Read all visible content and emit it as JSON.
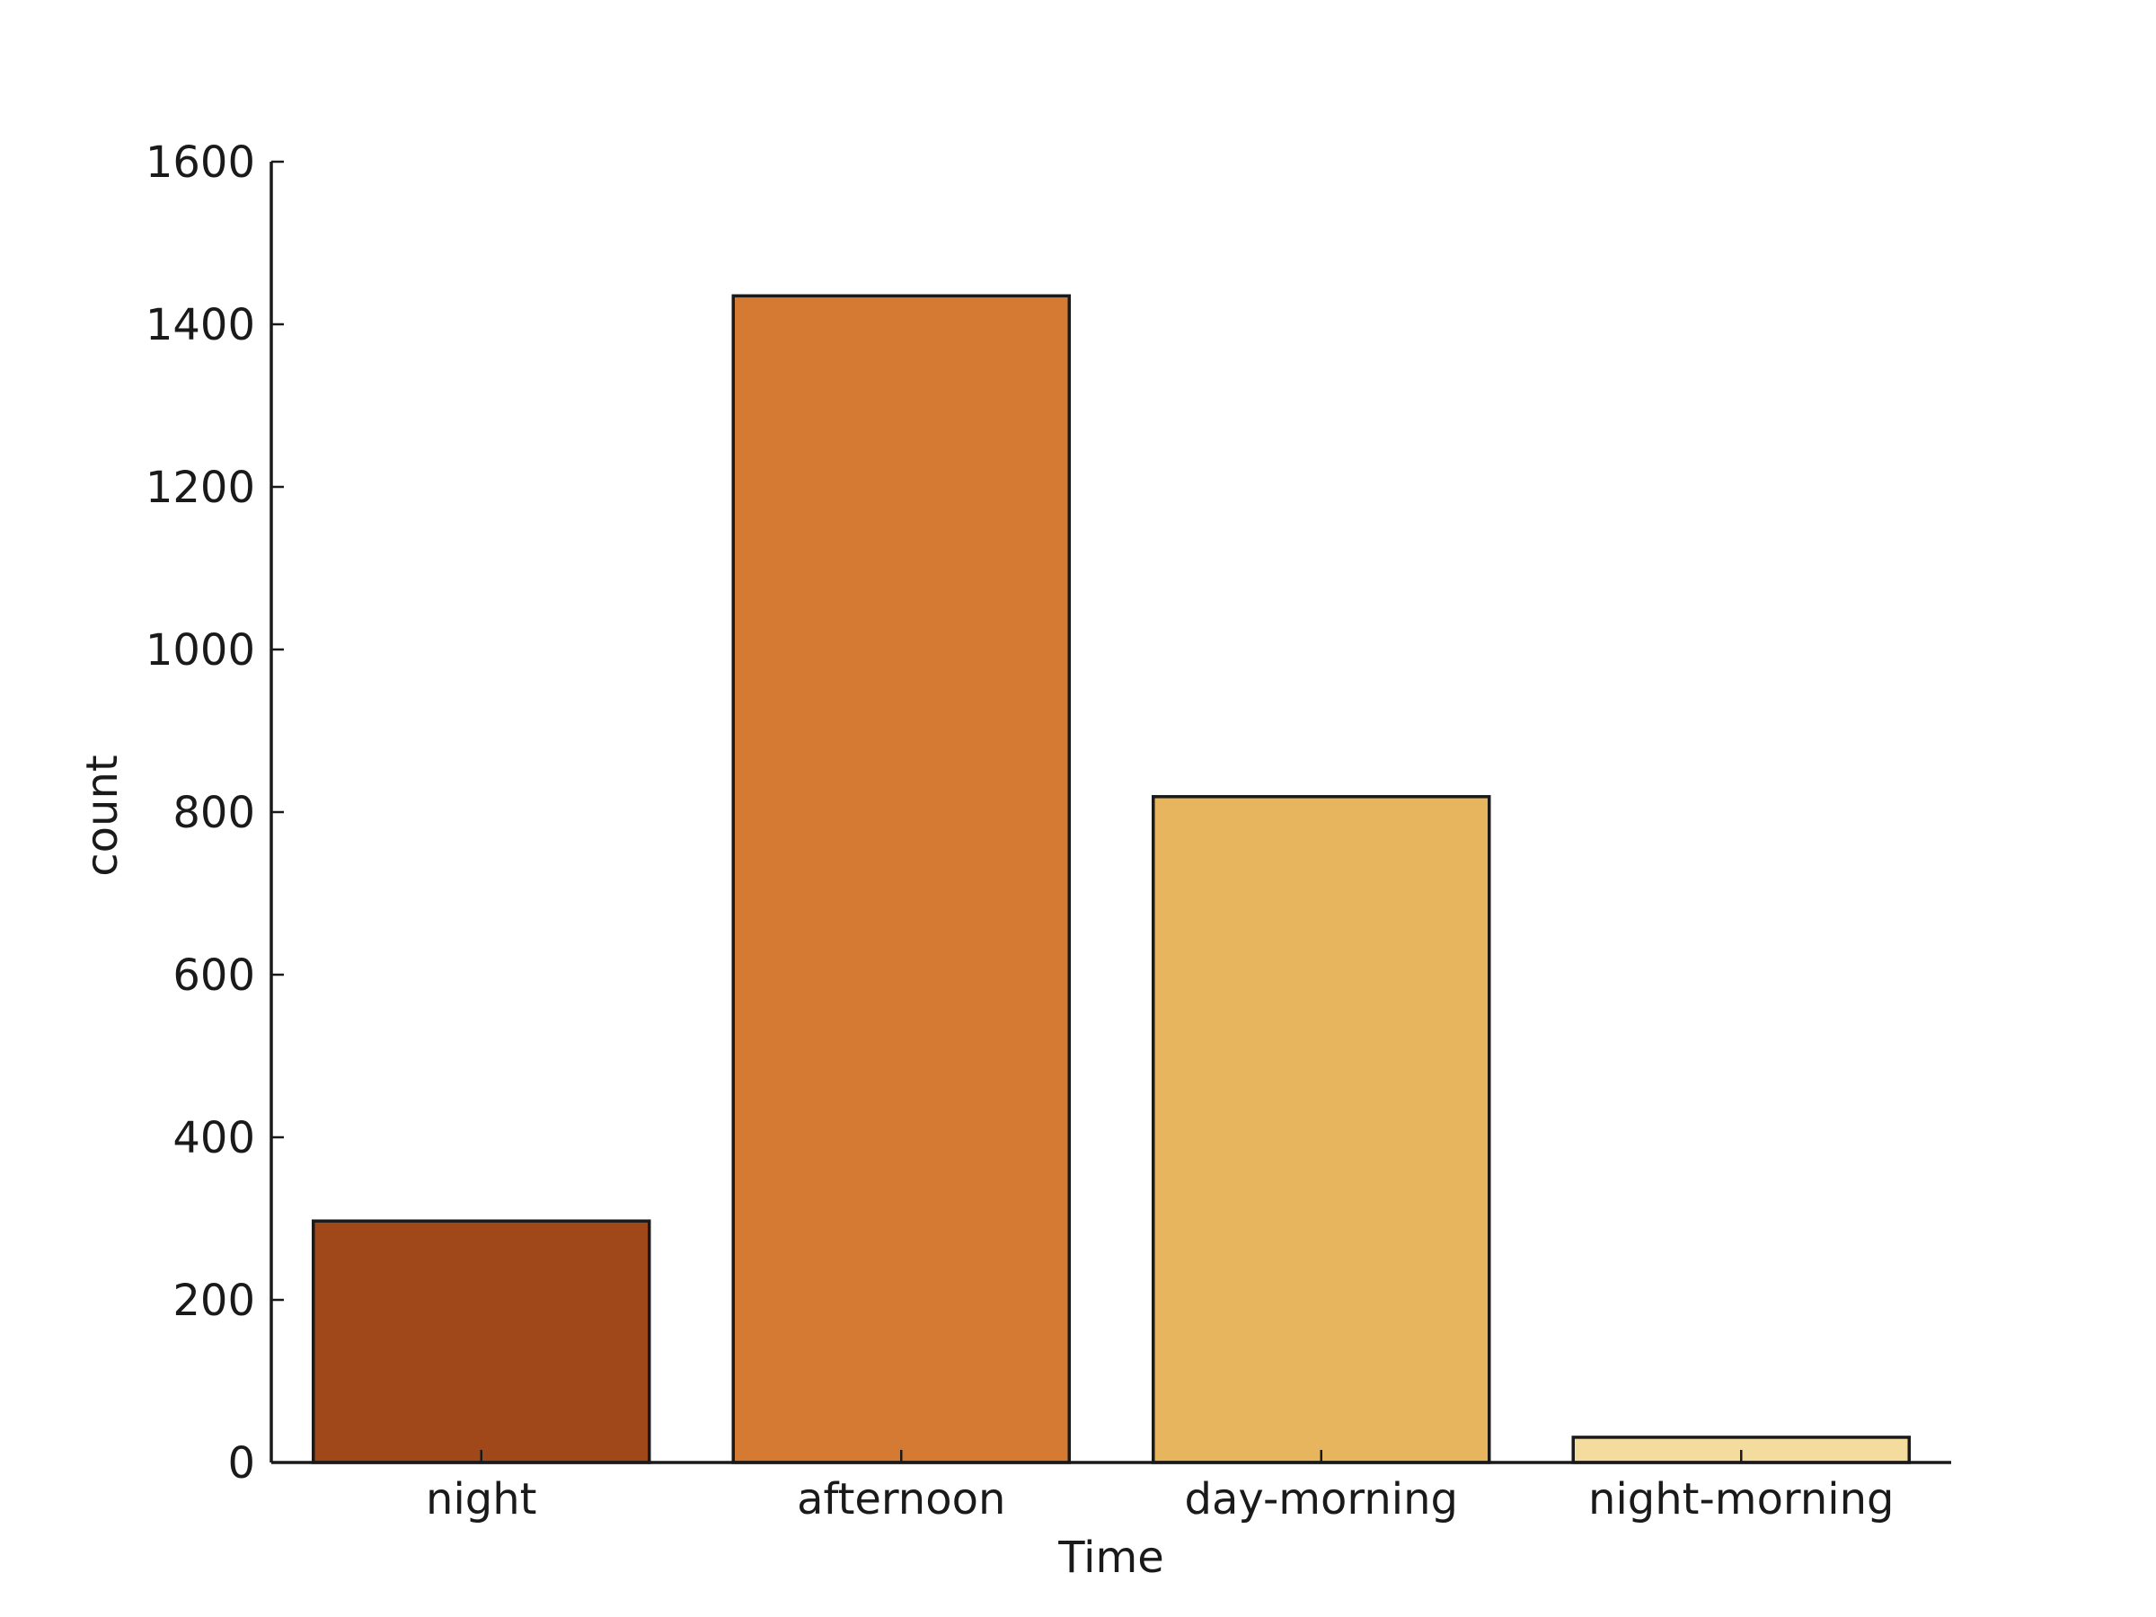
{
  "chart_data": {
    "type": "bar",
    "categories": [
      "night",
      "afternoon",
      "day-morning",
      "night-morning"
    ],
    "values": [
      297,
      1435,
      819,
      31
    ],
    "colors": [
      "#a0481a",
      "#d57a32",
      "#e6b55e",
      "#f4dc9e"
    ],
    "bar_edge_color": "#1a1a1a",
    "xlabel": "Time",
    "ylabel": "count",
    "ylim": [
      0,
      1600
    ],
    "yticks": [
      0,
      200,
      400,
      600,
      800,
      1000,
      1200,
      1400,
      1600
    ],
    "grid": false
  }
}
